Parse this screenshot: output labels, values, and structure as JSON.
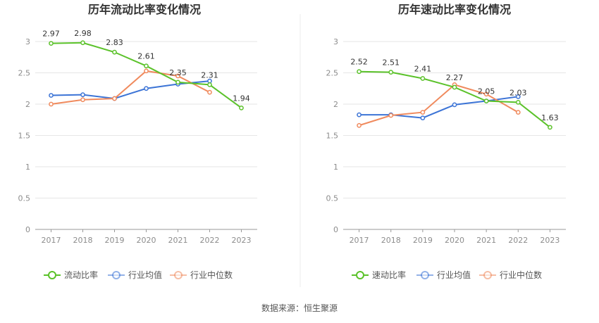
{
  "source_label": "数据来源：恒生聚源",
  "chart_data": [
    {
      "type": "line",
      "title": "历年流动比率变化情况",
      "categories": [
        "2017",
        "2018",
        "2019",
        "2020",
        "2021",
        "2022",
        "2023"
      ],
      "ylim": [
        0,
        3
      ],
      "yticks": [
        "0",
        "0.5",
        "1",
        "1.5",
        "2",
        "2.5",
        "3"
      ],
      "grid": true,
      "legend_position": "bottom",
      "series": [
        {
          "name": "流动比率",
          "color": "#5bc22a",
          "values": [
            2.97,
            2.98,
            2.83,
            2.61,
            2.35,
            2.31,
            1.94
          ],
          "labels": [
            "2.97",
            "2.98",
            "2.83",
            "2.61",
            "2.35",
            "2.31",
            "1.94"
          ]
        },
        {
          "name": "行业均值",
          "color": "#3c74d6",
          "values": [
            2.14,
            2.15,
            2.09,
            2.25,
            2.32,
            2.37,
            null
          ]
        },
        {
          "name": "行业中位数",
          "color": "#f08a5d",
          "values": [
            2.0,
            2.07,
            2.09,
            2.53,
            2.45,
            2.19,
            null
          ]
        }
      ]
    },
    {
      "type": "line",
      "title": "历年速动比率变化情况",
      "categories": [
        "2017",
        "2018",
        "2019",
        "2020",
        "2021",
        "2022",
        "2023"
      ],
      "ylim": [
        0,
        3
      ],
      "yticks": [
        "0",
        "0.5",
        "1",
        "1.5",
        "2",
        "2.5",
        "3"
      ],
      "grid": true,
      "legend_position": "bottom",
      "series": [
        {
          "name": "速动比率",
          "color": "#5bc22a",
          "values": [
            2.52,
            2.51,
            2.41,
            2.27,
            2.05,
            2.03,
            1.63
          ],
          "labels": [
            "2.52",
            "2.51",
            "2.41",
            "2.27",
            "2.05",
            "2.03",
            "1.63"
          ]
        },
        {
          "name": "行业均值",
          "color": "#3c74d6",
          "values": [
            1.83,
            1.83,
            1.78,
            1.99,
            2.05,
            2.12,
            null
          ]
        },
        {
          "name": "行业中位数",
          "color": "#f08a5d",
          "values": [
            1.66,
            1.82,
            1.87,
            2.31,
            2.16,
            1.87,
            null
          ]
        }
      ]
    }
  ]
}
